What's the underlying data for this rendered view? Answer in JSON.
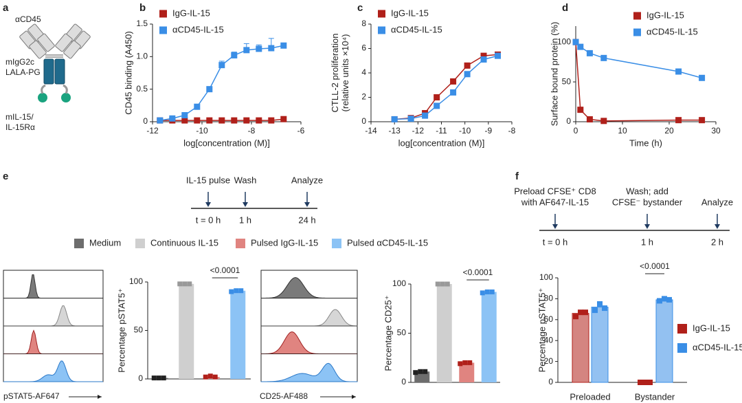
{
  "panel_labels": [
    "a",
    "b",
    "c",
    "d",
    "e",
    "f"
  ],
  "diagram_a": {
    "labels": [
      "αCD45",
      "mIgG2c",
      "LALA-PG",
      "mIL-15/",
      "IL-15Rα"
    ]
  },
  "timeline_e": {
    "events": [
      {
        "label": [
          "IL-15 pulse"
        ],
        "time": "t = 0 h"
      },
      {
        "label": [
          "Wash"
        ],
        "time": "1 h"
      },
      {
        "label": [
          "Analyze"
        ],
        "time": "24 h"
      }
    ]
  },
  "timeline_f": {
    "events": [
      {
        "label": [
          "Preload CFSE⁺ CD8",
          "with AF647-IL-15"
        ],
        "time": "t = 0 h"
      },
      {
        "label": [
          "Wash; add",
          "CFSE⁻ bystander"
        ],
        "time": "1 h"
      },
      {
        "label": [
          "Analyze"
        ],
        "time": "2 h"
      }
    ]
  },
  "legend_e": [
    {
      "name": "Medium",
      "color": "#6d6d6d",
      "point_color": "#222222"
    },
    {
      "name": "Continuous IL-15",
      "color": "#cfcfcf",
      "point_color": "#999999"
    },
    {
      "name": "Pulsed IgG-IL-15",
      "color": "#e08480",
      "point_color": "#b0201a"
    },
    {
      "name": "Pulsed αCD45-IL-15",
      "color": "#8cc3f5",
      "point_color": "#3a8ee6"
    }
  ],
  "histograms": {
    "labels": [
      "pSTAT5-AF647",
      "CD25-AF488"
    ]
  },
  "chart_data": [
    {
      "type": "line",
      "xlabel": "log[concentration (M)]",
      "ylabel": [
        "CD45 binding (A450)"
      ],
      "legend": "upper left",
      "x": [
        -11.7,
        -11.2,
        -10.7,
        -10.2,
        -9.7,
        -9.2,
        -8.7,
        -8.2,
        -7.7,
        -7.2,
        -6.7
      ],
      "xlim": [
        -12,
        -6
      ],
      "xticks": [
        -12,
        -10,
        -8,
        -6
      ],
      "ylim": [
        0,
        1.5
      ],
      "yticks": [
        0,
        0.5,
        {
          "value": 1,
          "label": "1.0"
        },
        1.5
      ],
      "series": [
        {
          "name": "IgG-IL-15",
          "color": "#b0201a",
          "values": [
            0.02,
            0.02,
            0.02,
            0.02,
            0.02,
            0.02,
            0.02,
            0.02,
            0.02,
            0.02,
            0.04
          ]
        },
        {
          "name": "αCD45-IL-15",
          "color": "#3a8ee6",
          "values": [
            0.02,
            0.05,
            0.1,
            0.23,
            0.5,
            0.87,
            1.02,
            1.1,
            1.12,
            1.13,
            1.17
          ],
          "errors": [
            0,
            0,
            0.01,
            0.02,
            0.03,
            0.06,
            0.05,
            0.1,
            0.06,
            0.15,
            0.03
          ]
        }
      ]
    },
    {
      "type": "line",
      "xlabel": "log[concentration (M)]",
      "ylabel": [
        "CTLL-2 proliferation",
        "(relative units ×10⁴)"
      ],
      "legend": "upper left",
      "x": [
        -13,
        -12.3,
        -11.7,
        -11.2,
        -10.5,
        -9.9,
        -9.2,
        -8.6
      ],
      "xlim": [
        -14,
        -8
      ],
      "xticks": [
        -14,
        -13,
        -12,
        -11,
        -10,
        -9,
        -8
      ],
      "ylim": [
        0,
        8
      ],
      "yticks": [
        0,
        2,
        4,
        6,
        8
      ],
      "series": [
        {
          "name": "IgG-IL-15",
          "color": "#b0201a",
          "values": [
            0.2,
            0.3,
            0.7,
            2.0,
            3.3,
            4.6,
            5.4,
            5.5
          ]
        },
        {
          "name": "αCD45-IL-15",
          "color": "#3a8ee6",
          "values": [
            0.2,
            0.25,
            0.5,
            1.3,
            2.4,
            3.9,
            5.1,
            5.4
          ]
        }
      ]
    },
    {
      "type": "line",
      "xlabel": "Time (h)",
      "ylabel": [
        "Surface bound protein (%)"
      ],
      "legend": "upper right",
      "x": [
        0,
        1,
        3,
        6,
        22,
        27
      ],
      "xlim": [
        0,
        30
      ],
      "xticks": [
        0,
        10,
        20,
        30
      ],
      "ylim": [
        0,
        120
      ],
      "yticks": [
        0,
        50,
        100
      ],
      "series": [
        {
          "name": "IgG-IL-15",
          "color": "#b0201a",
          "values": [
            100,
            15,
            3,
            1,
            2,
            2
          ]
        },
        {
          "name": "αCD45-IL-15",
          "color": "#3a8ee6",
          "values": [
            100,
            94,
            86,
            80,
            63,
            55
          ]
        }
      ]
    },
    {
      "type": "bar",
      "ylabel": [
        "Percentage pSTAT5⁺"
      ],
      "ylim": [
        0,
        100
      ],
      "yticks": [
        0,
        50,
        100
      ],
      "annotation": "<0.0001",
      "values": [
        1,
        98,
        2,
        91
      ],
      "points": [
        [
          1,
          1,
          1
        ],
        [
          98,
          98,
          98
        ],
        [
          2,
          3,
          2
        ],
        [
          90,
          91,
          91
        ]
      ]
    },
    {
      "type": "bar",
      "ylabel": [
        "Percentage CD25⁺"
      ],
      "ylim": [
        0,
        100
      ],
      "yticks": [
        0,
        50,
        100
      ],
      "annotation": "<0.0001",
      "values": [
        11,
        100,
        20,
        92
      ],
      "points": [
        [
          10,
          11,
          11
        ],
        [
          100,
          100,
          100
        ],
        [
          19,
          20,
          20
        ],
        [
          91,
          92,
          92
        ]
      ]
    },
    {
      "type": "grouped",
      "ylabel": [
        "Percentage pSTAT5⁺"
      ],
      "ylim": [
        0,
        100
      ],
      "yticks": [
        0,
        20,
        40,
        60,
        80,
        100
      ],
      "annotation": "<0.0001",
      "legend": "right",
      "categories": [
        "Preloaded",
        "Bystander"
      ],
      "series": [
        {
          "name": "IgG-IL-15",
          "color": "#b0201a",
          "values": [
            66,
            0
          ],
          "points": [
            [
              63,
              67,
              67
            ],
            [
              0,
              0,
              0
            ]
          ]
        },
        {
          "name": "αCD45-IL-15",
          "color": "#3a8ee6",
          "values": [
            72,
            79
          ],
          "points": [
            [
              69,
              75,
              71
            ],
            [
              78,
              80,
              79
            ]
          ]
        }
      ]
    }
  ]
}
